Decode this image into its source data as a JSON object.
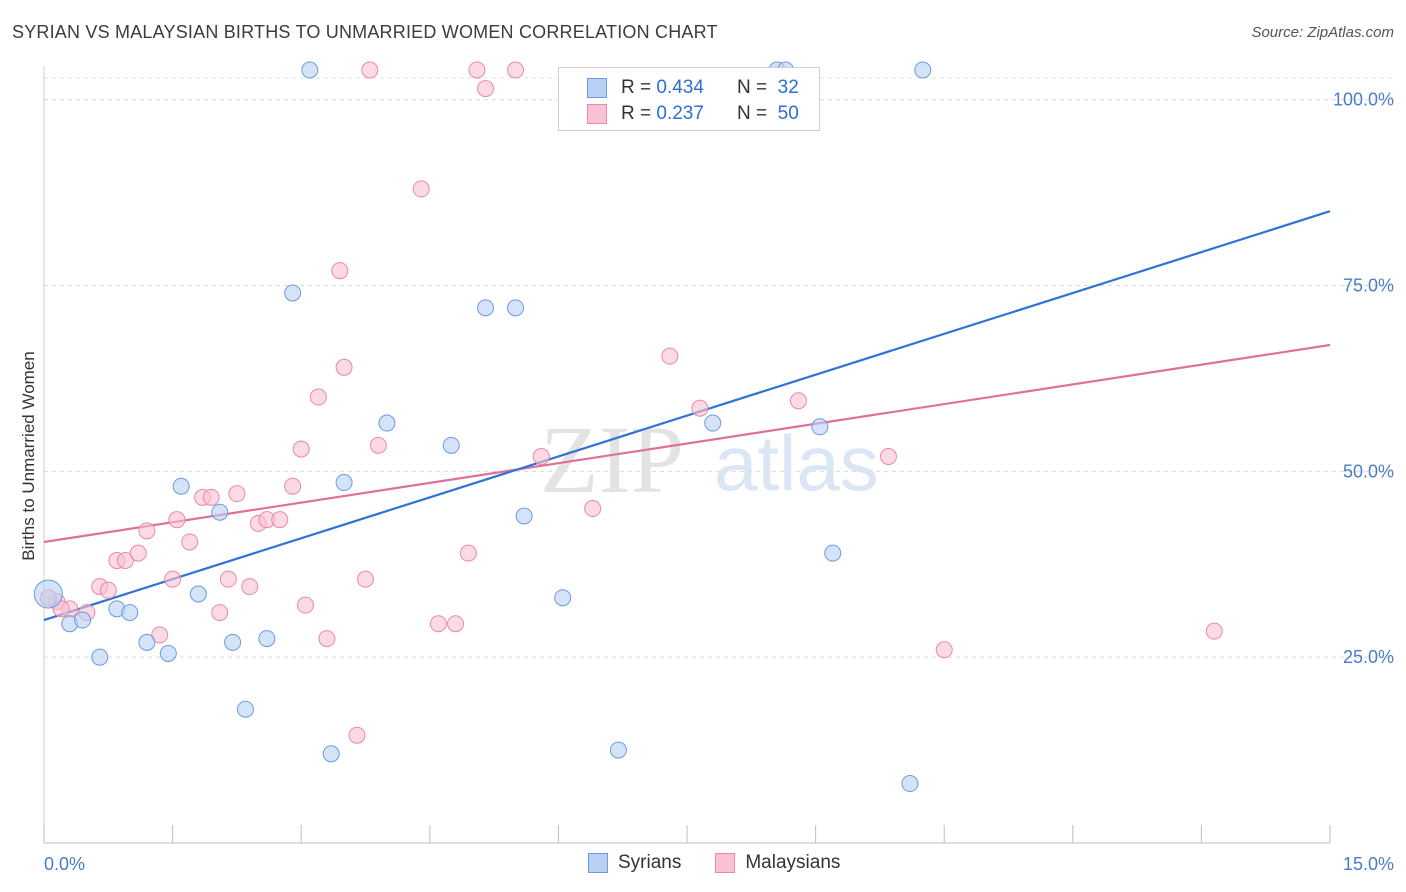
{
  "title": "SYRIAN VS MALAYSIAN BIRTHS TO UNMARRIED WOMEN CORRELATION CHART",
  "source": "Source: ZipAtlas.com",
  "watermark": {
    "zip": "ZIP",
    "atlas": "atlas"
  },
  "legend": {
    "rows": [
      {
        "r_label": "R =",
        "r_value": "0.434",
        "n_label": "N =",
        "n_value": "32"
      },
      {
        "r_label": "R =",
        "r_value": "0.237",
        "n_label": "N =",
        "n_value": "50"
      }
    ]
  },
  "colors": {
    "syrians_fill": "#b8d0f3",
    "syrians_stroke": "#6f9ae0",
    "syrians_line": "#2f73d3",
    "malaysians_fill": "#f8c2d2",
    "malaysians_stroke": "#e98aa7",
    "malaysians_line": "#e0709a",
    "tick_text": "#4a7cc9"
  },
  "chart_data": {
    "type": "scatter",
    "title": "SYRIAN VS MALAYSIAN BIRTHS TO UNMARRIED WOMEN CORRELATION CHART",
    "xlabel": "",
    "ylabel": "Births to Unmarried Women",
    "xlim": [
      0,
      15
    ],
    "ylim": [
      0,
      104
    ],
    "x_tick_labels": [
      "0.0%",
      "15.0%"
    ],
    "y_ticks": [
      25,
      50,
      75,
      100
    ],
    "y_tick_labels": [
      "25.0%",
      "50.0%",
      "75.0%",
      "100.0%"
    ],
    "series": [
      {
        "name": "Syrians",
        "r": 0.434,
        "n": 32,
        "trend": {
          "x": [
            0,
            15
          ],
          "y": [
            30.0,
            85.0
          ]
        },
        "points": [
          [
            0.05,
            33.5
          ],
          [
            0.3,
            29.5
          ],
          [
            0.45,
            30.0
          ],
          [
            0.65,
            25.0
          ],
          [
            0.85,
            31.5
          ],
          [
            1.0,
            31.0
          ],
          [
            1.2,
            27.0
          ],
          [
            1.45,
            25.5
          ],
          [
            1.6,
            48.0
          ],
          [
            1.8,
            33.5
          ],
          [
            2.05,
            44.5
          ],
          [
            2.2,
            27.0
          ],
          [
            2.35,
            18.0
          ],
          [
            2.6,
            27.5
          ],
          [
            2.9,
            74.0
          ],
          [
            3.1,
            104.0
          ],
          [
            3.35,
            12.0
          ],
          [
            3.5,
            48.5
          ],
          [
            4.0,
            56.5
          ],
          [
            4.75,
            53.5
          ],
          [
            5.15,
            72.0
          ],
          [
            5.5,
            72.0
          ],
          [
            5.6,
            44.0
          ],
          [
            6.05,
            33.0
          ],
          [
            6.7,
            12.5
          ],
          [
            7.8,
            56.5
          ],
          [
            9.05,
            56.0
          ],
          [
            9.2,
            39.0
          ],
          [
            10.1,
            8.0
          ],
          [
            10.25,
            104.0
          ],
          [
            8.55,
            104.0
          ],
          [
            8.65,
            104.0
          ]
        ]
      },
      {
        "name": "Malaysians",
        "r": 0.237,
        "n": 50,
        "trend": {
          "x": [
            0,
            15
          ],
          "y": [
            40.5,
            67.0
          ]
        },
        "points": [
          [
            0.15,
            32.5
          ],
          [
            0.3,
            31.5
          ],
          [
            0.5,
            31.0
          ],
          [
            0.65,
            34.5
          ],
          [
            0.75,
            34.0
          ],
          [
            0.85,
            38.0
          ],
          [
            0.95,
            38.0
          ],
          [
            1.1,
            39.0
          ],
          [
            1.2,
            42.0
          ],
          [
            1.35,
            28.0
          ],
          [
            1.5,
            35.5
          ],
          [
            1.55,
            43.5
          ],
          [
            1.7,
            40.5
          ],
          [
            1.85,
            46.5
          ],
          [
            1.95,
            46.5
          ],
          [
            2.05,
            31.0
          ],
          [
            2.15,
            35.5
          ],
          [
            2.25,
            47.0
          ],
          [
            2.4,
            34.5
          ],
          [
            2.5,
            43.0
          ],
          [
            2.6,
            43.5
          ],
          [
            2.75,
            43.5
          ],
          [
            2.9,
            48.0
          ],
          [
            3.0,
            53.0
          ],
          [
            3.05,
            32.0
          ],
          [
            3.2,
            60.0
          ],
          [
            3.3,
            27.5
          ],
          [
            3.45,
            77.0
          ],
          [
            3.5,
            64.0
          ],
          [
            3.65,
            14.5
          ],
          [
            3.75,
            35.5
          ],
          [
            3.8,
            104.0
          ],
          [
            3.9,
            53.5
          ],
          [
            4.4,
            88.0
          ],
          [
            4.6,
            29.5
          ],
          [
            4.8,
            29.5
          ],
          [
            4.95,
            39.0
          ],
          [
            5.05,
            104.0
          ],
          [
            5.15,
            101.5
          ],
          [
            5.5,
            104.0
          ],
          [
            5.8,
            52.0
          ],
          [
            6.4,
            45.0
          ],
          [
            7.3,
            65.5
          ],
          [
            7.65,
            58.5
          ],
          [
            8.8,
            59.5
          ],
          [
            9.85,
            52.0
          ],
          [
            10.5,
            26.0
          ],
          [
            13.65,
            28.5
          ],
          [
            0.05,
            33.0
          ],
          [
            0.2,
            31.5
          ]
        ]
      }
    ]
  },
  "bottom_legend": [
    "Syrians",
    "Malaysians"
  ]
}
